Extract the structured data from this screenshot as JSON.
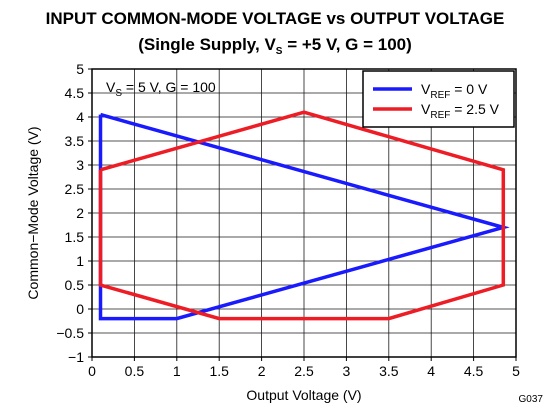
{
  "chart_data": {
    "type": "line",
    "title": "INPUT COMMON-MODE VOLTAGE vs OUTPUT VOLTAGE",
    "subtitle": {
      "pre": "(Single Supply, V",
      "sub": "S",
      "post": " = +5 V, G = 100)"
    },
    "xlabel": "Output Voltage (V)",
    "ylabel": "Common−Mode Voltage (V)",
    "xlim": [
      0,
      5
    ],
    "ylim": [
      -1,
      5
    ],
    "x_ticks": [
      0,
      0.5,
      1,
      1.5,
      2,
      2.5,
      3,
      3.5,
      4,
      4.5,
      5
    ],
    "x_tick_labels": [
      "0",
      "0.5",
      "1",
      "1.5",
      "2",
      "2.5",
      "3",
      "3.5",
      "4",
      "4.5",
      "5"
    ],
    "y_ticks": [
      -1,
      -0.5,
      0,
      0.5,
      1,
      1.5,
      2,
      2.5,
      3,
      3.5,
      4,
      4.5,
      5
    ],
    "y_tick_labels": [
      "−1",
      "−0.5",
      "0",
      "0.5",
      "1",
      "1.5",
      "2",
      "2.5",
      "3",
      "3.5",
      "4",
      "4.5",
      "5"
    ],
    "grid": true,
    "legend_position": "top-right",
    "annotation": {
      "pre": "V",
      "sub": "S",
      "post": " = 5 V, G = 100"
    },
    "series": [
      {
        "name": "VREF = 0 V",
        "label_main": "V",
        "label_sub": "REF",
        "label_post": " = 0 V",
        "color": "#1a1aff",
        "x": [
          0.1,
          0.1,
          1.0,
          4.85,
          0.1
        ],
        "y": [
          4.05,
          -0.2,
          -0.2,
          1.7,
          4.05
        ]
      },
      {
        "name": "VREF = 2.5 V",
        "label_main": "V",
        "label_sub": "REF",
        "label_post": " = 2.5 V",
        "color": "#ee1c25",
        "x": [
          0.1,
          0.1,
          1.5,
          3.5,
          4.85,
          4.85,
          2.5,
          0.1
        ],
        "y": [
          2.9,
          0.5,
          -0.2,
          -0.2,
          0.5,
          2.9,
          4.1,
          2.9
        ]
      }
    ],
    "figure_id": "G037"
  }
}
